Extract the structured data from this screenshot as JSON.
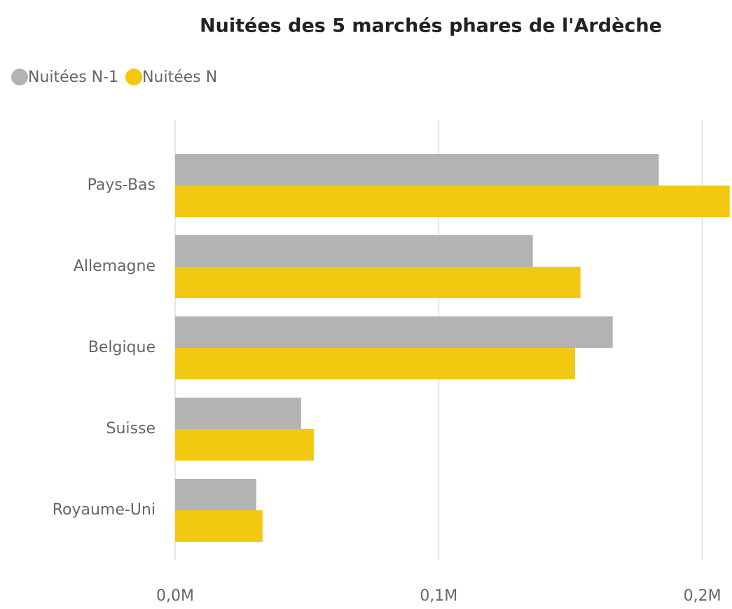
{
  "chart_data": {
    "type": "hbar",
    "title": "Nuitées des 5 marchés phares de l'Ardèche",
    "categories": [
      "Pays-Bas",
      "Allemagne",
      "Belgique",
      "Suisse",
      "Royaume-Uni"
    ],
    "series": [
      {
        "name": "Nuitées N-1",
        "color": "#b3b3b3",
        "values": [
          183500,
          135700,
          166000,
          47800,
          30800
        ]
      },
      {
        "name": "Nuitées N",
        "color": "#f2c811",
        "values": [
          210400,
          153800,
          151700,
          52600,
          33200
        ]
      }
    ],
    "xlim": [
      0,
      211000
    ],
    "xticks": [
      {
        "value": 0,
        "label": "0,0M"
      },
      {
        "value": 100000,
        "label": "0,1M"
      },
      {
        "value": 200000,
        "label": "0,2M"
      }
    ],
    "grid": true,
    "legend": "top-left"
  }
}
